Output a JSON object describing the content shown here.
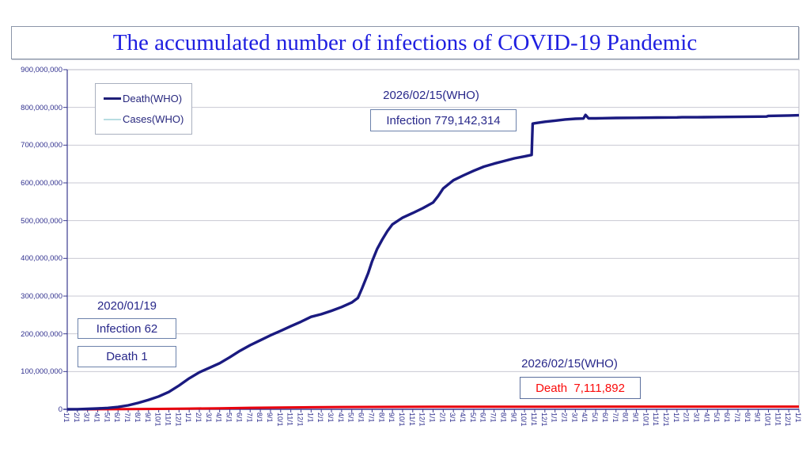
{
  "title": {
    "text": "The accumulated number of infections of COVID-19 Pandemic"
  },
  "legend": {
    "items": [
      {
        "label": "Death(WHO)",
        "color": "#1f1f78",
        "thickness": 3
      },
      {
        "label": "Cases(WHO)",
        "color": "#b8dde2",
        "thickness": 2
      }
    ]
  },
  "annotations": {
    "latest_date_label": "2026/02/15(WHO)",
    "latest_infection_label": "Infection 779,142,314",
    "start_date_label": "2020/01/19",
    "start_infection_label": "Infection 62",
    "start_death_label": "Death 1",
    "death_date_label": "2026/02/15(WHO)",
    "death_total_label": "Death  7,111,892"
  },
  "chart_data": {
    "type": "line",
    "title": "The accumulated number of infections of COVID-19 Pandemic",
    "xlabel": "",
    "ylabel": "",
    "ylim": [
      0,
      900000000
    ],
    "grid": true,
    "legend_position": "upper-left-inside",
    "x_axis_note": "monthly ticks from 2020/1/1 to 2026/1/1, labels month/1 rotated vertically",
    "x_ticks": [
      "1/1",
      "2/1",
      "3/1",
      "4/1",
      "5/1",
      "6/1",
      "7/1",
      "8/1",
      "9/1",
      "10/1",
      "11/1",
      "12/1",
      "1/1",
      "2/1",
      "3/1",
      "4/1",
      "5/1",
      "6/1",
      "7/1",
      "8/1",
      "9/1",
      "10/1",
      "11/1",
      "12/1",
      "1/1",
      "2/1",
      "3/1",
      "4/1",
      "5/1",
      "6/1",
      "7/1",
      "8/1",
      "9/1",
      "10/1",
      "11/1",
      "12/1",
      "1/1",
      "2/1",
      "3/1",
      "4/1",
      "5/1",
      "6/1",
      "7/1",
      "8/1",
      "9/1",
      "10/1",
      "11/1",
      "12/1",
      "1/1",
      "2/1",
      "3/1",
      "4/1",
      "5/1",
      "6/1",
      "7/1",
      "8/1",
      "9/1",
      "10/1",
      "11/1",
      "12/1",
      "1/1",
      "2/1",
      "3/1",
      "4/1",
      "5/1",
      "6/1",
      "7/1",
      "8/1",
      "9/1",
      "10/1",
      "11/1",
      "12/1",
      "1/1"
    ],
    "y_ticks": [
      "0",
      "100,000,000",
      "200,000,000",
      "300,000,000",
      "400,000,000",
      "500,000,000",
      "600,000,000",
      "700,000,000",
      "800,000,000",
      "900,000,000"
    ],
    "key_points": {
      "first_report": {
        "date": "2020/01/19",
        "infections": 62,
        "deaths": 1
      },
      "latest_report": {
        "date": "2026/02/15",
        "infections": 779142314,
        "deaths": 7111892
      }
    },
    "series": [
      {
        "name": "Infections (dark navy curve)",
        "color": "#1a1a80",
        "width": 3.4,
        "unit": "millions",
        "points": [
          [
            0,
            0
          ],
          [
            1,
            0.2
          ],
          [
            2,
            1
          ],
          [
            3,
            2
          ],
          [
            4,
            3.5
          ],
          [
            5,
            6
          ],
          [
            6,
            10.5
          ],
          [
            7,
            17
          ],
          [
            8,
            25
          ],
          [
            9,
            34
          ],
          [
            10,
            46
          ],
          [
            11,
            63
          ],
          [
            12,
            82
          ],
          [
            13,
            98
          ],
          [
            14,
            110
          ],
          [
            15,
            122
          ],
          [
            16,
            138
          ],
          [
            17,
            155
          ],
          [
            18,
            170
          ],
          [
            19,
            183
          ],
          [
            20,
            196
          ],
          [
            21,
            208
          ],
          [
            22,
            220
          ],
          [
            23,
            232
          ],
          [
            24,
            245
          ],
          [
            25,
            252
          ],
          [
            26,
            261
          ],
          [
            27,
            271
          ],
          [
            28,
            283
          ],
          [
            28.6,
            295
          ],
          [
            29,
            320
          ],
          [
            29.6,
            360
          ],
          [
            30,
            392
          ],
          [
            30.5,
            425
          ],
          [
            31,
            450
          ],
          [
            31.5,
            472
          ],
          [
            32,
            490
          ],
          [
            33,
            508
          ],
          [
            34,
            520
          ],
          [
            35,
            533
          ],
          [
            36,
            548
          ],
          [
            36.5,
            565
          ],
          [
            37,
            585
          ],
          [
            38,
            607
          ],
          [
            39,
            620
          ],
          [
            40,
            632
          ],
          [
            41,
            643
          ],
          [
            42,
            651
          ],
          [
            43,
            658
          ],
          [
            44,
            665
          ],
          [
            45,
            670
          ],
          [
            45.7,
            674
          ],
          [
            45.8,
            757
          ],
          [
            46,
            758
          ],
          [
            47,
            762
          ],
          [
            48,
            765
          ],
          [
            49,
            768
          ],
          [
            50,
            770
          ],
          [
            50.8,
            770.5
          ],
          [
            51,
            780
          ],
          [
            51.3,
            771
          ],
          [
            52,
            771
          ],
          [
            54,
            772
          ],
          [
            56,
            772.5
          ],
          [
            58,
            773
          ],
          [
            60,
            773.5
          ],
          [
            60.5,
            774
          ],
          [
            62,
            774
          ],
          [
            64,
            774.5
          ],
          [
            66,
            775
          ],
          [
            68,
            775.5
          ],
          [
            68.8,
            775.8
          ],
          [
            69,
            777.5
          ],
          [
            70,
            778
          ],
          [
            71,
            778.5
          ],
          [
            72,
            779.1
          ]
        ]
      },
      {
        "name": "Deaths (red line)",
        "color": "#e8000d",
        "width": 3,
        "unit": "millions",
        "points": [
          [
            0,
            0
          ],
          [
            2,
            0.1
          ],
          [
            4,
            0.3
          ],
          [
            6,
            0.55
          ],
          [
            9,
            1.1
          ],
          [
            12,
            1.95
          ],
          [
            15,
            2.8
          ],
          [
            18,
            3.9
          ],
          [
            21,
            4.7
          ],
          [
            24,
            5.45
          ],
          [
            27,
            6.1
          ],
          [
            30,
            6.35
          ],
          [
            33,
            6.55
          ],
          [
            36,
            6.7
          ],
          [
            40,
            6.85
          ],
          [
            44,
            6.95
          ],
          [
            48,
            7.0
          ],
          [
            56,
            7.05
          ],
          [
            64,
            7.08
          ],
          [
            72,
            7.11
          ]
        ]
      }
    ],
    "colors": {
      "gridline": "#c9c9d3",
      "plot_border": "#b9b9c6",
      "axis": "#3a3a90",
      "axis_label": "#30308e",
      "title": "#1e1ee0",
      "annotation_text": "#28288a",
      "death_annotation_text": "#fb0a0a"
    }
  }
}
